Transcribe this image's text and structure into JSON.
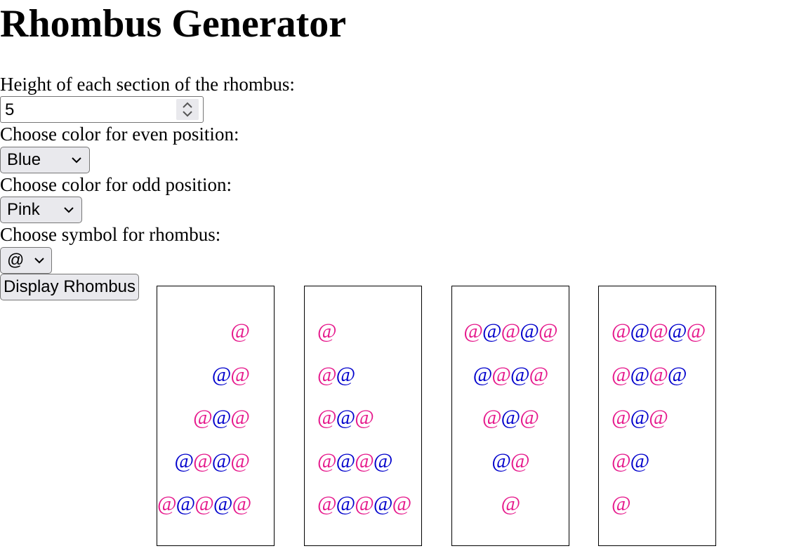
{
  "page": {
    "title": "Rhombus Generator"
  },
  "form": {
    "height_label": "Height of each section of the rhombus:",
    "height_value": "5",
    "even_label": "Choose color for even position:",
    "even_value": "Blue",
    "odd_label": "Choose color for odd position:",
    "odd_value": "Pink",
    "symbol_label": "Choose symbol for rhombus:",
    "symbol_value": "@",
    "display_button": "Display Rhombus"
  },
  "colors": {
    "even": "#0000cc",
    "odd": "#e6198c"
  },
  "icons": {
    "spinner": "spinner-arrows-icon",
    "dropdown": "chevron-down-icon"
  },
  "rhombus": {
    "symbol": "@",
    "panels": [
      {
        "name": "upper-left",
        "align": "right",
        "rows": [
          [
            "odd"
          ],
          [
            "even",
            "odd"
          ],
          [
            "odd",
            "even",
            "odd"
          ],
          [
            "even",
            "odd",
            "even",
            "odd"
          ],
          [
            "odd",
            "even",
            "odd",
            "even",
            "odd"
          ]
        ]
      },
      {
        "name": "upper-right",
        "align": "left",
        "rows": [
          [
            "odd"
          ],
          [
            "odd",
            "even"
          ],
          [
            "odd",
            "even",
            "odd"
          ],
          [
            "odd",
            "even",
            "odd",
            "even"
          ],
          [
            "odd",
            "even",
            "odd",
            "even",
            "odd"
          ]
        ]
      },
      {
        "name": "lower-left",
        "align": "center",
        "rows": [
          [
            "odd",
            "even",
            "odd",
            "even",
            "odd"
          ],
          [
            "even",
            "odd",
            "even",
            "odd"
          ],
          [
            "odd",
            "even",
            "odd"
          ],
          [
            "even",
            "odd"
          ],
          [
            "odd"
          ]
        ]
      },
      {
        "name": "lower-right",
        "align": "left",
        "rows": [
          [
            "odd",
            "even",
            "odd",
            "even",
            "odd"
          ],
          [
            "odd",
            "even",
            "odd",
            "even"
          ],
          [
            "odd",
            "even",
            "odd"
          ],
          [
            "odd",
            "even"
          ],
          [
            "odd"
          ]
        ]
      }
    ]
  }
}
